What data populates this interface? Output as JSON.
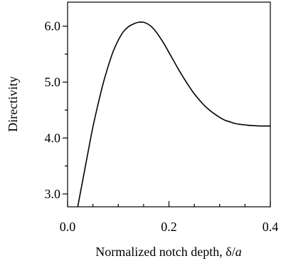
{
  "chart_data": {
    "type": "line",
    "title": "",
    "xlabel_main": "Normalized notch depth, δ/",
    "xlabel_italic": "a",
    "ylabel": "Directivity",
    "xlim": [
      0,
      0.4
    ],
    "ylim": [
      2.77,
      6.43
    ],
    "x_ticks": [
      0,
      0.2,
      0.4
    ],
    "x_tick_labels": [
      "0.0",
      "0.2",
      "0.4"
    ],
    "x_minor_ticks": [
      0.05,
      0.1,
      0.15,
      0.25,
      0.3,
      0.35
    ],
    "y_ticks": [
      3.0,
      4.0,
      5.0,
      6.0
    ],
    "y_tick_labels": [
      "3.0",
      "4.0",
      "5.0",
      "6.0"
    ],
    "y_minor_ticks": [
      3.5,
      4.5,
      5.5
    ],
    "grid": false,
    "series": [
      {
        "x": [
          0.02,
          0.03,
          0.04,
          0.05,
          0.06,
          0.07,
          0.08,
          0.09,
          0.1,
          0.11,
          0.12,
          0.13,
          0.14,
          0.15,
          0.16,
          0.17,
          0.18,
          0.19,
          0.2,
          0.21,
          0.22,
          0.23,
          0.24,
          0.25,
          0.26,
          0.27,
          0.28,
          0.29,
          0.3,
          0.31,
          0.32,
          0.33,
          0.34,
          0.35,
          0.36,
          0.37,
          0.38,
          0.39,
          0.4
        ],
        "y": [
          2.77,
          3.25,
          3.73,
          4.2,
          4.6,
          4.97,
          5.28,
          5.55,
          5.75,
          5.9,
          5.99,
          6.04,
          6.07,
          6.07,
          6.03,
          5.95,
          5.83,
          5.69,
          5.53,
          5.37,
          5.21,
          5.06,
          4.92,
          4.79,
          4.68,
          4.58,
          4.5,
          4.43,
          4.37,
          4.32,
          4.29,
          4.26,
          4.245,
          4.235,
          4.225,
          4.22,
          4.215,
          4.215,
          4.215
        ]
      }
    ]
  }
}
